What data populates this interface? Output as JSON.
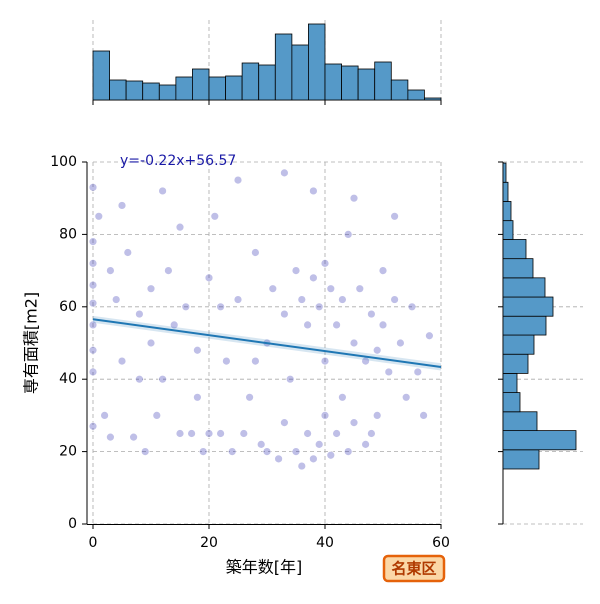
{
  "chart_data": [
    {
      "type": "scatter",
      "x_label": "築年数[年]",
      "y_label": "専有面積[m2]",
      "annotation": "y=-0.22x+56.57",
      "color": "#2a2ab0",
      "grid": true,
      "xlim": [
        0,
        60
      ],
      "ylim": [
        0,
        100
      ],
      "xticks": [
        0,
        20,
        40,
        60
      ],
      "yticks": [
        0,
        20,
        40,
        60,
        80,
        100
      ],
      "x": [
        0,
        0,
        0,
        0,
        0,
        0,
        0,
        0,
        0,
        1,
        2,
        3,
        4,
        5,
        6,
        7,
        8,
        9,
        10,
        11,
        12,
        13,
        14,
        15,
        16,
        17,
        18,
        19,
        20,
        20,
        21,
        22,
        23,
        24,
        25,
        26,
        27,
        28,
        29,
        30,
        30,
        31,
        32,
        33,
        33,
        34,
        35,
        35,
        36,
        36,
        37,
        37,
        38,
        38,
        38,
        39,
        39,
        40,
        40,
        40,
        41,
        41,
        42,
        42,
        43,
        43,
        44,
        44,
        45,
        45,
        46,
        47,
        47,
        48,
        49,
        49,
        50,
        50,
        51,
        52,
        53,
        54,
        55,
        56,
        57,
        58,
        5,
        12,
        25,
        33,
        45,
        15,
        28,
        18,
        10,
        52,
        3,
        8,
        22,
        48
      ],
      "y": [
        93,
        78,
        72,
        66,
        61,
        55,
        48,
        42,
        27,
        85,
        30,
        24,
        62,
        45,
        75,
        24,
        58,
        20,
        65,
        30,
        40,
        70,
        55,
        25,
        60,
        25,
        48,
        20,
        25,
        68,
        85,
        25,
        45,
        20,
        62,
        25,
        35,
        75,
        22,
        50,
        20,
        65,
        18,
        28,
        58,
        40,
        20,
        70,
        16,
        62,
        25,
        55,
        18,
        68,
        92,
        22,
        60,
        30,
        45,
        72,
        19,
        65,
        25,
        55,
        35,
        62,
        20,
        80,
        28,
        50,
        65,
        22,
        45,
        58,
        48,
        30,
        55,
        70,
        42,
        62,
        50,
        35,
        60,
        42,
        30,
        52,
        88,
        92,
        95,
        97,
        90,
        82,
        45,
        35,
        50,
        85,
        70,
        40,
        60,
        25
      ],
      "regression": {
        "color": "#1f77b4",
        "x": [
          0,
          60
        ],
        "y": [
          56.57,
          43.37
        ],
        "ci_lower": [
          55.6,
          42.4
        ],
        "ci_upper": [
          57.5,
          44.4
        ]
      }
    },
    {
      "type": "histogram",
      "color": "#5599c8",
      "xlim": [
        0,
        60
      ],
      "ylim": [
        0,
        80
      ],
      "bins": [
        0,
        2.86,
        5.71,
        8.57,
        11.43,
        14.29,
        17.14,
        20,
        22.86,
        25.71,
        28.57,
        31.43,
        34.29,
        37.14,
        40,
        42.86,
        45.71,
        48.57,
        51.43,
        54.29,
        57.14,
        60
      ],
      "values": [
        49,
        20,
        19,
        17,
        15,
        23,
        31,
        23,
        24,
        37,
        35,
        66,
        55,
        76,
        36,
        34,
        31,
        38,
        20,
        10,
        2
      ]
    },
    {
      "type": "histogram",
      "orientation": "horizontal",
      "color": "#5599c8",
      "xlim": [
        0,
        80
      ],
      "ylim": [
        0,
        100
      ],
      "bins": [
        15.2,
        20.5,
        25.8,
        31,
        36.3,
        41.6,
        46.9,
        52.2,
        57.4,
        62.7,
        68,
        73.3,
        78.6,
        83.8,
        89.1,
        94.4,
        99.7
      ],
      "values": [
        36,
        73,
        34,
        17,
        14,
        25,
        31,
        43,
        50,
        42,
        30,
        23,
        10,
        8,
        5,
        3
      ]
    }
  ],
  "badge": "名東区"
}
